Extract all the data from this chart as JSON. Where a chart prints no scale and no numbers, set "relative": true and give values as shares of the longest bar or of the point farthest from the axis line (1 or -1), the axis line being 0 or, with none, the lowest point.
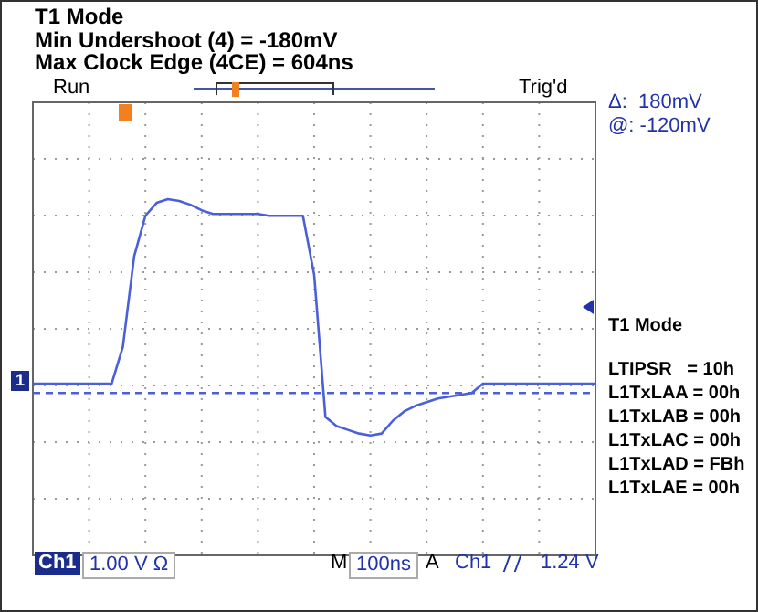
{
  "chart_data": {
    "type": "line",
    "relative": true,
    "grid": true,
    "marker": "none",
    "line_style": "solid",
    "title": "T1 Mode",
    "subtitle": "Min Undershoot (4) = -180mV",
    "annotations": [
      "Max Clock Edge (4CE) = 604ns",
      "Run",
      "Trig'd",
      "Δ:  180mV",
      "@: -120mV",
      "T1 Mode",
      "LTIPSR   = 10h",
      "L1TxLAA = 00h",
      "L1TxLAB = 00h",
      "L1TxLAC = 00h",
      "L1TxLAD = FBh",
      "L1TxLAE = 00h",
      "Ch1",
      "1.00 V Ω",
      "M",
      "100ns",
      "A",
      "Ch1",
      "1.24 V",
      "1"
    ],
    "categories": [
      null,
      null,
      null,
      null,
      null,
      null,
      null,
      null,
      null,
      null,
      null,
      null,
      null,
      null,
      null,
      null,
      null,
      null,
      null,
      null,
      null,
      null,
      null,
      null,
      null,
      null,
      null,
      null,
      null,
      null,
      null,
      null,
      null,
      null,
      null,
      null,
      null,
      null,
      null,
      null,
      null,
      null,
      null,
      null,
      null,
      null,
      null,
      null,
      null,
      null,
      null
    ],
    "series": [
      {
        "color": "#4a5fd8",
        "values": [
          0,
          0,
          0,
          0,
          0,
          0,
          0,
          0,
          0.2,
          0.69,
          0.91,
          0.98,
          1,
          0.99,
          0.97,
          0.94,
          0.92,
          0.92,
          0.92,
          0.92,
          0.92,
          0.91,
          0.91,
          0.91,
          0.91,
          0.59,
          -0.18,
          -0.23,
          -0.25,
          -0.27,
          -0.28,
          -0.27,
          -0.2,
          -0.15,
          -0.12,
          -0.1,
          -0.08,
          -0.07,
          -0.06,
          -0.05,
          0,
          0,
          0,
          0,
          0,
          0,
          0,
          0,
          0,
          0,
          0
        ]
      }
    ],
    "ref_lines": [
      {
        "axis": "y",
        "value": -0.05,
        "color": "#4a5fd8",
        "line_style": "dashed"
      }
    ],
    "legend": false
  }
}
